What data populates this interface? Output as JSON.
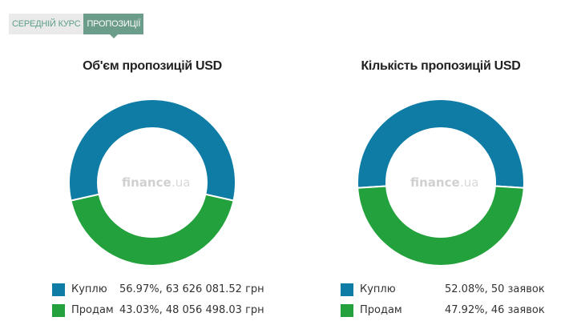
{
  "tabs": [
    {
      "label": "СЕРЕДНІЙ КУРС",
      "active": false
    },
    {
      "label": "ПРОПОЗИЦІЇ",
      "active": true
    }
  ],
  "colors": {
    "buy": "#0f7ca6",
    "sell": "#22a13c"
  },
  "watermark": {
    "brand": "finance",
    "domain": ".ua"
  },
  "chart_data": [
    {
      "type": "pie",
      "title": "Об'єм пропозицій USD",
      "categories": [
        "Куплю",
        "Продам"
      ],
      "values": [
        56.97,
        43.03
      ],
      "legend": [
        {
          "label": "Куплю",
          "value": "56.97%, 63 626 081.52 грн"
        },
        {
          "label": "Продам",
          "value": "43.03%, 48 056 498.03 грн"
        }
      ]
    },
    {
      "type": "pie",
      "title": "Кількість пропозицій USD",
      "categories": [
        "Куплю",
        "Продам"
      ],
      "values": [
        52.08,
        47.92
      ],
      "legend": [
        {
          "label": "Куплю",
          "value": "52.08%, 50 заявок"
        },
        {
          "label": "Продам",
          "value": "47.92%, 46 заявок"
        }
      ]
    }
  ]
}
